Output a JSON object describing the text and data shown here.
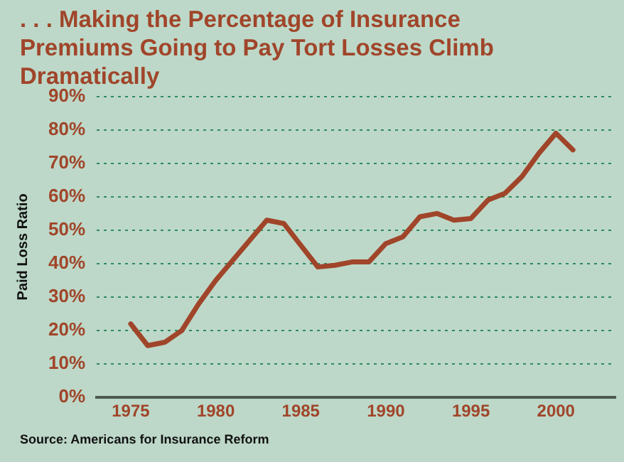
{
  "chart_data": {
    "type": "line",
    "title": ". . . Making the Percentage of Insurance Premiums Going to Pay Tort Losses Climb Dramatically",
    "ylabel": "Paid Loss Ratio",
    "x": [
      1975,
      1976,
      1977,
      1978,
      1979,
      1980,
      1981,
      1982,
      1983,
      1984,
      1985,
      1986,
      1987,
      1988,
      1989,
      1990,
      1991,
      1992,
      1993,
      1994,
      1995,
      1996,
      1997,
      1998,
      1999,
      2000,
      2001
    ],
    "series": [
      {
        "color": "#a0452a",
        "values": [
          22,
          15.5,
          16.5,
          20,
          28,
          35,
          41,
          47,
          53,
          52,
          45.5,
          39,
          39.5,
          40.5,
          40.5,
          46,
          48,
          54,
          55,
          53,
          53.5,
          59,
          61,
          66,
          73,
          79,
          74
        ]
      }
    ],
    "xlim": [
      1973,
      2003.5
    ],
    "xticks": [
      1975,
      1980,
      1985,
      1990,
      1995,
      2000
    ],
    "ylim": [
      0,
      90
    ],
    "yticks": [
      {
        "value": 0,
        "label": "0%"
      },
      {
        "value": 10,
        "label": "10%"
      },
      {
        "value": 20,
        "label": "20%"
      },
      {
        "value": 30,
        "label": "30%"
      },
      {
        "value": 40,
        "label": "40%"
      },
      {
        "value": 50,
        "label": "50%"
      },
      {
        "value": 60,
        "label": "60%"
      },
      {
        "value": 70,
        "label": "70%"
      },
      {
        "value": 80,
        "label": "80%"
      },
      {
        "value": 90,
        "label": "90%"
      }
    ],
    "grid": "y",
    "legend": false,
    "marker": "none",
    "line_style": "solid",
    "annotations": [
      "Source: Americans for Insurance Reform"
    ]
  }
}
